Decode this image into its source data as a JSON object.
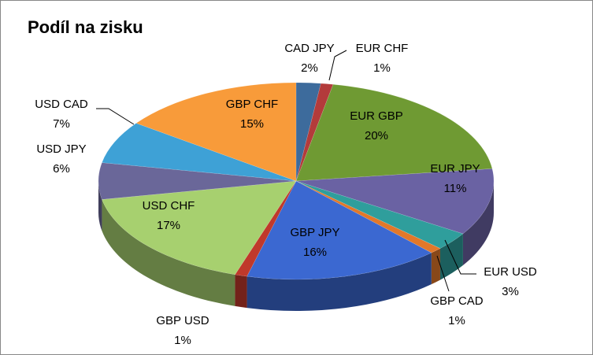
{
  "chart_data": {
    "type": "pie3d",
    "title": "Podíl na zisku",
    "categories": [
      "CAD JPY",
      "EUR CHF",
      "EUR GBP",
      "EUR JPY",
      "EUR USD",
      "GBP CAD",
      "GBP JPY",
      "GBP USD",
      "USD CHF",
      "USD JPY",
      "USD CAD",
      "GBP CHF"
    ],
    "values": [
      2,
      1,
      20,
      11,
      3,
      1,
      16,
      1,
      17,
      6,
      7,
      15
    ],
    "value_labels": [
      "2%",
      "1%",
      "20%",
      "11%",
      "3%",
      "1%",
      "16%",
      "1%",
      "17%",
      "6%",
      "7%",
      "15%"
    ],
    "colors": [
      "#3d6b9c",
      "#b33b3b",
      "#6f9a33",
      "#6a62a3",
      "#2f9e9c",
      "#e2782a",
      "#3b68d1",
      "#c0392b",
      "#a7d06f",
      "#6a6799",
      "#3ea1d6",
      "#f89b3a"
    ]
  }
}
